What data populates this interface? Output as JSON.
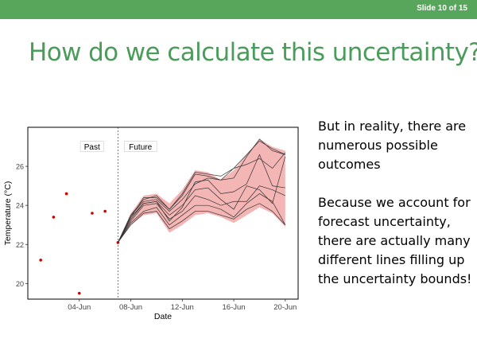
{
  "header": {
    "slide_counter": "Slide 10 of 15",
    "bar_color": "#58a55c"
  },
  "slide": {
    "title": "How do we calculate this uncertainty?",
    "title_color": "#4a9c5a",
    "paragraphs": [
      "But in reality, there are numerous possible outcomes",
      "Because we account for forecast uncertainty, there are actually many different lines filling up the uncertainty bounds!"
    ]
  },
  "chart_data": {
    "type": "line",
    "xlabel": "Date",
    "ylabel": "Temperature (°C)",
    "x_ticks": [
      "04-Jun",
      "08-Jun",
      "12-Jun",
      "16-Jun",
      "20-Jun"
    ],
    "y_ticks": [
      20,
      22,
      24,
      26
    ],
    "annotations": [
      "Past",
      "Future"
    ],
    "grid": false,
    "forecast_start": "07-Jun",
    "xlim": [
      "31-May",
      "21-Jun"
    ],
    "ylim": [
      19.2,
      28.0
    ],
    "colors": {
      "observed": "#cc0000",
      "band": "#f4b5b5",
      "ensemble": "#333333"
    },
    "observed": {
      "x": [
        "01-Jun",
        "02-Jun",
        "03-Jun",
        "04-Jun",
        "05-Jun",
        "06-Jun",
        "07-Jun"
      ],
      "y": [
        21.2,
        23.4,
        24.6,
        19.5,
        23.6,
        23.7,
        22.1
      ]
    },
    "forecast_x": [
      "07-Jun",
      "08-Jun",
      "09-Jun",
      "10-Jun",
      "11-Jun",
      "12-Jun",
      "13-Jun",
      "14-Jun",
      "15-Jun",
      "16-Jun",
      "17-Jun",
      "18-Jun",
      "19-Jun",
      "20-Jun"
    ],
    "band": {
      "lower": [
        22.1,
        23.0,
        23.5,
        23.6,
        22.6,
        23.0,
        23.5,
        23.6,
        23.4,
        23.1,
        23.5,
        23.9,
        23.6,
        22.9
      ],
      "upper": [
        22.1,
        23.6,
        24.5,
        24.6,
        24.1,
        24.8,
        25.8,
        25.7,
        25.3,
        25.8,
        26.6,
        27.4,
        27.0,
        26.8
      ]
    },
    "series": [
      {
        "values": [
          22.1,
          23.4,
          24.4,
          24.4,
          23.8,
          24.6,
          25.7,
          25.6,
          25.5,
          25.9,
          26.6,
          27.3,
          26.9,
          26.6
        ]
      },
      {
        "values": [
          22.1,
          23.5,
          24.3,
          24.5,
          23.8,
          24.5,
          25.6,
          25.5,
          25.3,
          25.4,
          26.5,
          27.4,
          26.8,
          26.6
        ]
      },
      {
        "values": [
          22.1,
          23.5,
          24.2,
          24.3,
          23.7,
          24.3,
          25.1,
          25.4,
          25.3,
          25.9,
          26.1,
          26.4,
          25.9,
          26.7
        ]
      },
      {
        "values": [
          22.1,
          23.3,
          24.1,
          24.2,
          23.5,
          24.0,
          24.8,
          24.9,
          24.3,
          23.8,
          25.0,
          24.8,
          24.1,
          26.5
        ]
      },
      {
        "values": [
          22.1,
          23.2,
          24.0,
          24.1,
          23.3,
          23.7,
          24.5,
          24.3,
          24.0,
          24.2,
          24.2,
          25.0,
          24.8,
          24.5
        ]
      },
      {
        "values": [
          22.1,
          23.1,
          23.7,
          23.9,
          23.0,
          23.5,
          24.0,
          24.0,
          23.8,
          23.4,
          24.1,
          24.6,
          24.2,
          23.0
        ]
      },
      {
        "values": [
          22.1,
          23.0,
          23.6,
          23.7,
          22.8,
          23.2,
          23.7,
          23.7,
          23.5,
          23.3,
          23.8,
          24.1,
          23.7,
          23.0
        ]
      },
      {
        "values": [
          22.1,
          23.4,
          24.1,
          24.2,
          23.2,
          23.9,
          25.2,
          25.3,
          24.6,
          24.7,
          25.1,
          26.6,
          25.0,
          24.9
        ]
      }
    ]
  }
}
